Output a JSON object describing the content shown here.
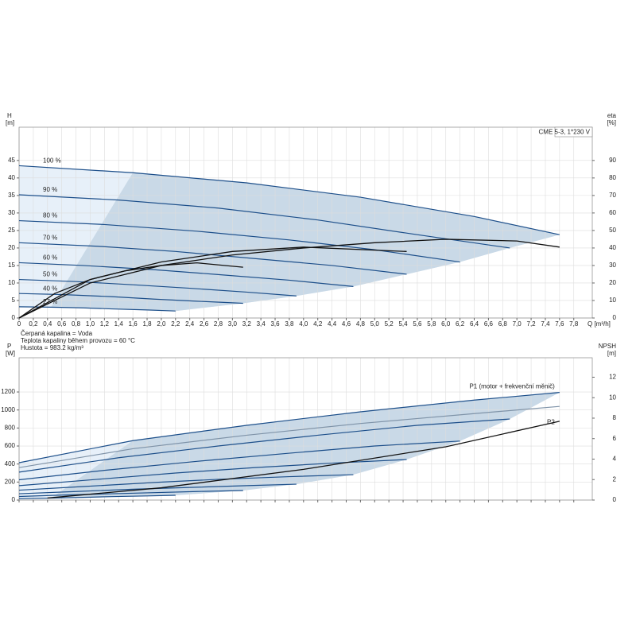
{
  "chart_data": [
    {
      "type": "line",
      "ylabel": "H",
      "yunit": "[m]",
      "y2label": "eta",
      "y2unit": "[%]",
      "xlabel": "Q [m³/h]",
      "box": "CME 5-3, 1*230 V",
      "notes": [
        "Čerpaná kapalina = Voda",
        "Teplota kapaliny během provozu = 60 °C",
        "Hustota = 983.2 kg/m³"
      ],
      "xlim": [
        0,
        8.06
      ],
      "ylim": [
        0,
        54.5
      ],
      "y2lim": [
        0,
        109
      ],
      "grid": true,
      "xticks": [
        0,
        {
          "value": 0.2,
          "label": "0,2"
        },
        {
          "value": 0.4,
          "label": "0,4"
        },
        {
          "value": 0.6,
          "label": "0,6"
        },
        {
          "value": 0.8,
          "label": "0,8"
        },
        {
          "value": 1.0,
          "label": "1,0"
        },
        {
          "value": 1.2,
          "label": "1,2"
        },
        {
          "value": 1.4,
          "label": "1,4"
        },
        {
          "value": 1.6,
          "label": "1,6"
        },
        {
          "value": 1.8,
          "label": "1,8"
        },
        {
          "value": 2.0,
          "label": "2,0"
        },
        {
          "value": 2.2,
          "label": "2,2"
        },
        {
          "value": 2.4,
          "label": "2,4"
        },
        {
          "value": 2.6,
          "label": "2,6"
        },
        {
          "value": 2.8,
          "label": "2,8"
        },
        {
          "value": 3.0,
          "label": "3,0"
        },
        {
          "value": 3.2,
          "label": "3,2"
        },
        {
          "value": 3.4,
          "label": "3,4"
        },
        {
          "value": 3.6,
          "label": "3,6"
        },
        {
          "value": 3.8,
          "label": "3,8"
        },
        {
          "value": 4.0,
          "label": "4,0"
        },
        {
          "value": 4.2,
          "label": "4,2"
        },
        {
          "value": 4.4,
          "label": "4,4"
        },
        {
          "value": 4.6,
          "label": "4,6"
        },
        {
          "value": 4.8,
          "label": "4,8"
        },
        {
          "value": 5.0,
          "label": "5,0"
        },
        {
          "value": 5.2,
          "label": "5,2"
        },
        {
          "value": 5.4,
          "label": "5,4"
        },
        {
          "value": 5.6,
          "label": "5,6"
        },
        {
          "value": 5.8,
          "label": "5,8"
        },
        {
          "value": 6.0,
          "label": "6,0"
        },
        {
          "value": 6.2,
          "label": "6,2"
        },
        {
          "value": 6.4,
          "label": "6,4"
        },
        {
          "value": 6.6,
          "label": "6,6"
        },
        {
          "value": 6.8,
          "label": "6,8"
        },
        {
          "value": 7.0,
          "label": "7,0"
        },
        {
          "value": 7.2,
          "label": "7,2"
        },
        {
          "value": 7.4,
          "label": "7,4"
        },
        {
          "value": 7.6,
          "label": "7,6"
        },
        {
          "value": 7.8,
          "label": "7,8"
        }
      ],
      "yticks": [
        0,
        5,
        10,
        15,
        20,
        25,
        30,
        35,
        40,
        45
      ],
      "y2ticks": [
        0,
        10,
        20,
        30,
        40,
        50,
        60,
        70,
        80,
        90
      ],
      "series": [
        {
          "name": "100 %",
          "color": "#1d4f8a",
          "x": [
            0,
            1.6,
            3.2,
            4.8,
            6.4,
            7.6
          ],
          "values": [
            43.5,
            41.5,
            38.6,
            34.5,
            29,
            23.8
          ]
        },
        {
          "name": "90 %",
          "color": "#1d4f8a",
          "x": [
            0,
            1.4,
            2.8,
            4.2,
            5.6,
            6.9
          ],
          "values": [
            35.2,
            33.7,
            31.4,
            28,
            23.8,
            20
          ]
        },
        {
          "name": "80 %",
          "color": "#1d4f8a",
          "x": [
            0,
            1.2,
            2.5,
            3.8,
            5,
            6.2
          ],
          "values": [
            27.8,
            26.7,
            24.8,
            22.3,
            19.5,
            16
          ]
        },
        {
          "name": "70 %",
          "color": "#1d4f8a",
          "x": [
            0,
            1.1,
            2.2,
            3.3,
            4.4,
            5.45
          ],
          "values": [
            21.5,
            20.5,
            19,
            17,
            15,
            12.5
          ]
        },
        {
          "name": "60 %",
          "color": "#1d4f8a",
          "x": [
            0,
            0.9,
            1.9,
            2.8,
            3.8,
            4.7
          ],
          "values": [
            15.8,
            15,
            13.8,
            12.4,
            10.8,
            9
          ]
        },
        {
          "name": "50 %",
          "color": "#1d4f8a",
          "x": [
            0,
            0.8,
            1.6,
            2.4,
            3.2,
            3.9
          ],
          "values": [
            11,
            10.4,
            9.5,
            8.5,
            7.4,
            6.3
          ]
        },
        {
          "name": "40 %",
          "color": "#1d4f8a",
          "x": [
            0,
            0.6,
            1.3,
            1.9,
            2.5,
            3.15
          ],
          "values": [
            7,
            6.7,
            6.1,
            5.4,
            4.8,
            4.2
          ]
        },
        {
          "name": "27 %",
          "color": "#1d4f8a",
          "x": [
            0,
            0.45,
            0.9,
            1.3,
            1.8,
            2.2
          ],
          "values": [
            3.2,
            3.1,
            2.9,
            2.6,
            2.3,
            2
          ]
        },
        {
          "color": "#111111",
          "axis": "y2",
          "x": [
            0,
            1,
            2,
            3,
            4,
            5,
            6,
            7,
            7.6
          ],
          "values": [
            0,
            20,
            30,
            36,
            40,
            43,
            45,
            44,
            40.5
          ]
        },
        {
          "color": "#111111",
          "axis": "y2",
          "x": [
            0,
            1,
            2,
            3,
            4,
            5.45
          ],
          "values": [
            0,
            22,
            32,
            38,
            40.5,
            38
          ]
        },
        {
          "color": "#111111",
          "axis": "y2",
          "x": [
            0,
            0.5,
            1,
            1.5,
            2,
            2.5,
            3.15
          ],
          "values": [
            0,
            14,
            22,
            27,
            30,
            31.5,
            29
          ]
        }
      ]
    },
    {
      "type": "line",
      "ylabel": "P",
      "yunit": "[W]",
      "y2label": "NPSH",
      "y2unit": "[m]",
      "xlim": [
        0,
        8.06
      ],
      "ylim": [
        0,
        1580
      ],
      "y2lim": [
        0,
        13.9
      ],
      "grid": true,
      "yticks": [
        0,
        200,
        400,
        600,
        800,
        1000,
        1200
      ],
      "y2ticks": [
        0,
        2,
        4,
        6,
        8,
        10,
        12
      ],
      "series": [
        {
          "name": "P1 (motor + frekvenční měnič)",
          "color": "#1d4f8a",
          "x": [
            0,
            1.6,
            3.2,
            4.8,
            6.4,
            7.6
          ],
          "values": [
            415,
            660,
            830,
            980,
            1110,
            1195
          ]
        },
        {
          "color": "#1d4f8a",
          "x": [
            0,
            1.4,
            2.8,
            4.2,
            5.6,
            6.9
          ],
          "values": [
            310,
            470,
            600,
            720,
            830,
            900
          ]
        },
        {
          "color": "#1d4f8a",
          "x": [
            0,
            1.2,
            2.5,
            3.8,
            5,
            6.2
          ],
          "values": [
            225,
            330,
            430,
            520,
            600,
            655
          ]
        },
        {
          "color": "#1d4f8a",
          "x": [
            0,
            1.1,
            2.2,
            3.3,
            4.4,
            5.45
          ],
          "values": [
            160,
            230,
            300,
            360,
            410,
            450
          ]
        },
        {
          "color": "#1d4f8a",
          "x": [
            0,
            0.9,
            1.9,
            2.8,
            3.8,
            4.7
          ],
          "values": [
            110,
            150,
            195,
            230,
            260,
            282
          ]
        },
        {
          "color": "#1d4f8a",
          "x": [
            0,
            0.8,
            1.6,
            2.4,
            3.2,
            3.9
          ],
          "values": [
            70,
            95,
            120,
            140,
            160,
            176
          ]
        },
        {
          "color": "#1d4f8a",
          "x": [
            0,
            0.6,
            1.3,
            1.9,
            2.5,
            3.15
          ],
          "values": [
            40,
            55,
            70,
            82,
            95,
            106
          ]
        },
        {
          "color": "#1d4f8a",
          "x": [
            0,
            0.45,
            0.9,
            1.3,
            1.8,
            2.2
          ],
          "values": [
            15,
            22,
            30,
            38,
            46,
            53
          ]
        },
        {
          "name": "P2",
          "color": "#7f93a8",
          "x": [
            0,
            1.6,
            3.2,
            4.8,
            6.4,
            7.6
          ],
          "values": [
            360,
            570,
            720,
            850,
            960,
            1040
          ]
        },
        {
          "color": "#111111",
          "axis": "y2",
          "x": [
            0.4,
            2,
            4,
            6,
            7.6
          ],
          "values": [
            0.2,
            1.2,
            3,
            5.2,
            7.7
          ]
        }
      ]
    }
  ]
}
